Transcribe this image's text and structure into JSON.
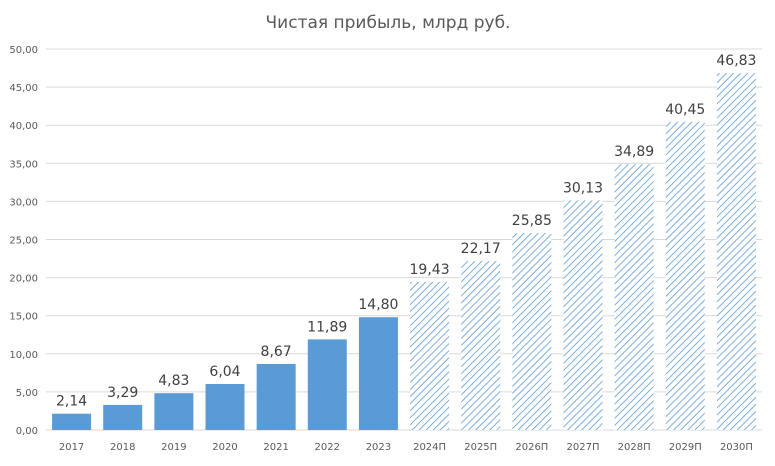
{
  "chart_data": {
    "type": "bar",
    "title": "Чистая прибыль, млрд руб.",
    "xlabel": "",
    "ylabel": "",
    "ylim": [
      0,
      50
    ],
    "yticks": [
      "0,00",
      "5,00",
      "10,00",
      "15,00",
      "20,00",
      "25,00",
      "30,00",
      "35,00",
      "40,00",
      "45,00",
      "50,00"
    ],
    "grid": true,
    "categories": [
      "2017",
      "2018",
      "2019",
      "2020",
      "2021",
      "2022",
      "2023",
      "2024П",
      "2025П",
      "2026П",
      "2027П",
      "2028П",
      "2029П",
      "2030П"
    ],
    "values": [
      2.14,
      3.29,
      4.83,
      6.04,
      8.67,
      11.89,
      14.8,
      19.43,
      22.17,
      25.85,
      30.13,
      34.89,
      40.45,
      46.83
    ],
    "data_labels": [
      "2,14",
      "3,29",
      "4,83",
      "6,04",
      "8,67",
      "11,89",
      "14,80",
      "19,43",
      "22,17",
      "25,85",
      "30,13",
      "34,89",
      "40,45",
      "46,83"
    ],
    "forecast": [
      false,
      false,
      false,
      false,
      false,
      false,
      false,
      true,
      true,
      true,
      true,
      true,
      true,
      true
    ],
    "colors": {
      "actual": "#5b9bd5",
      "forecast_hatch": "#5b9bd5",
      "grid": "#d9d9d9",
      "text": "#595959"
    }
  }
}
